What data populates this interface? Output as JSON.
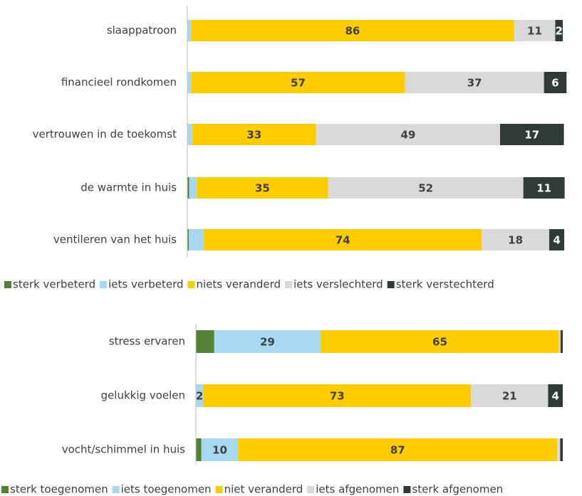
{
  "chart_data": [
    {
      "type": "bar",
      "stacked": true,
      "orientation": "horizontal",
      "xlim": [
        0,
        100
      ],
      "categories": [
        "slaappatroon",
        "financieel rondkomen",
        "vertrouwen in de toekomst",
        "de warmte in huis",
        "ventileren van het huis"
      ],
      "series": [
        {
          "name": "sterk verbeterd",
          "color": "#548235",
          "values": [
            0,
            0,
            0,
            0.5,
            0.4
          ],
          "value_labels": [
            null,
            null,
            null,
            null,
            null
          ]
        },
        {
          "name": "iets verbeterd",
          "color": "#a6d9f1",
          "values": [
            1,
            1,
            1.3,
            2,
            4
          ],
          "value_labels": [
            null,
            null,
            null,
            null,
            null
          ]
        },
        {
          "name": "niets veranderd",
          "color": "#ffcc00",
          "values": [
            86,
            57,
            33,
            35,
            74
          ],
          "value_labels": [
            "86",
            "57",
            "33",
            "35",
            "74"
          ]
        },
        {
          "name": "iets verslechterd",
          "color": "#d9d9d9",
          "values": [
            11,
            37,
            49,
            52,
            18
          ],
          "value_labels": [
            "11",
            "37",
            "49",
            "52",
            "18"
          ]
        },
        {
          "name": "sterk verstechterd",
          "color": "#2f3b34",
          "values": [
            2,
            6,
            17,
            11,
            4
          ],
          "value_labels": [
            "2",
            "6",
            "17",
            "11",
            "4"
          ]
        }
      ]
    },
    {
      "type": "bar",
      "stacked": true,
      "orientation": "horizontal",
      "xlim": [
        0,
        100
      ],
      "categories": [
        "stress ervaren",
        "gelukkig voelen",
        "vocht/schimmel in huis"
      ],
      "series": [
        {
          "name": "sterk toegenomen",
          "color": "#548235",
          "values": [
            5,
            0,
            1.5
          ],
          "value_labels": [
            null,
            null,
            null
          ]
        },
        {
          "name": "iets toegenomen",
          "color": "#a6d9f1",
          "values": [
            29,
            2,
            10
          ],
          "value_labels": [
            "29",
            "2",
            "10"
          ]
        },
        {
          "name": "niet veranderd",
          "color": "#ffcc00",
          "values": [
            65,
            73,
            87
          ],
          "value_labels": [
            "65",
            "73",
            "87"
          ]
        },
        {
          "name": "iets afgenomen",
          "color": "#d9d9d9",
          "values": [
            0.4,
            21,
            0.8
          ],
          "value_labels": [
            null,
            "21",
            null
          ]
        },
        {
          "name": "sterk afgenomen",
          "color": "#2f3b34",
          "values": [
            0.6,
            4,
            0.7
          ],
          "value_labels": [
            null,
            "4",
            null
          ]
        }
      ]
    }
  ]
}
